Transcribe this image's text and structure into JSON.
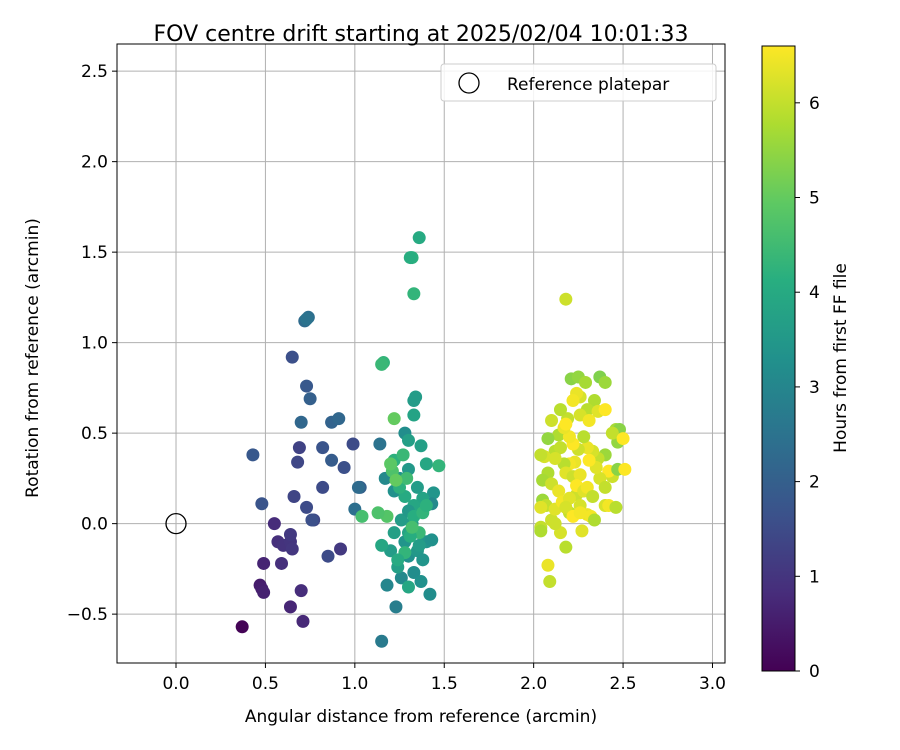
{
  "chart_data": {
    "type": "scatter",
    "title": "FOV centre drift starting at 2025/02/04 10:01:33",
    "xlabel": "Angular distance from reference (arcmin)",
    "ylabel": "Rotation from reference (arcmin)",
    "xlim": [
      -0.33,
      3.07
    ],
    "ylim": [
      -0.77,
      2.65
    ],
    "xticks": [
      0.0,
      0.5,
      1.0,
      1.5,
      2.0,
      2.5,
      3.0
    ],
    "xtick_labels": [
      "0.0",
      "0.5",
      "1.0",
      "1.5",
      "2.0",
      "2.5",
      "3.0"
    ],
    "yticks": [
      -0.5,
      0.0,
      0.5,
      1.0,
      1.5,
      2.0,
      2.5
    ],
    "ytick_labels": [
      "−0.5",
      "0.0",
      "0.5",
      "1.0",
      "1.5",
      "2.0",
      "2.5"
    ],
    "grid": true,
    "legend": {
      "position": "top-right",
      "entries": [
        {
          "label": "Reference platepar",
          "marker": "open-circle"
        }
      ]
    },
    "reference_point": {
      "x": 0.0,
      "y": 0.0
    },
    "colorbar": {
      "label": "Hours from first FF file",
      "colormap": "viridis",
      "range": [
        0,
        6.6
      ],
      "ticks": [
        0,
        1,
        2,
        3,
        4,
        5,
        6
      ],
      "tick_labels": [
        "0",
        "1",
        "2",
        "3",
        "4",
        "5",
        "6"
      ]
    },
    "points": [
      [
        0.37,
        -0.57,
        0.05
      ],
      [
        0.47,
        -0.34,
        0.5
      ],
      [
        0.48,
        -0.36,
        0.55
      ],
      [
        0.49,
        -0.38,
        0.6
      ],
      [
        0.49,
        -0.22,
        0.65
      ],
      [
        0.64,
        -0.46,
        0.7
      ],
      [
        0.71,
        -0.54,
        0.75
      ],
      [
        0.7,
        -0.37,
        0.85
      ],
      [
        0.55,
        0.0,
        0.8
      ],
      [
        0.57,
        -0.1,
        0.9
      ],
      [
        0.6,
        -0.12,
        0.95
      ],
      [
        0.59,
        -0.22,
        0.9
      ],
      [
        0.64,
        -0.1,
        1.0
      ],
      [
        0.64,
        -0.06,
        1.1
      ],
      [
        0.65,
        -0.14,
        1.05
      ],
      [
        0.92,
        -0.14,
        1.1
      ],
      [
        0.85,
        -0.18,
        1.5
      ],
      [
        0.77,
        0.02,
        1.4
      ],
      [
        0.76,
        0.02,
        1.6
      ],
      [
        0.73,
        0.09,
        1.5
      ],
      [
        0.66,
        0.15,
        1.35
      ],
      [
        0.68,
        0.34,
        1.4
      ],
      [
        0.69,
        0.42,
        1.3
      ],
      [
        0.48,
        0.11,
        1.7
      ],
      [
        0.43,
        0.38,
        1.8
      ],
      [
        0.7,
        0.56,
        2.2
      ],
      [
        0.65,
        0.92,
        1.6
      ],
      [
        0.73,
        0.76,
        1.8
      ],
      [
        0.75,
        0.69,
        2.0
      ],
      [
        0.72,
        1.12,
        2.3
      ],
      [
        0.74,
        1.14,
        2.4
      ],
      [
        0.73,
        1.13,
        2.5
      ],
      [
        0.82,
        0.2,
        1.5
      ],
      [
        0.87,
        0.35,
        1.9
      ],
      [
        0.82,
        0.42,
        1.7
      ],
      [
        0.87,
        0.56,
        2.1
      ],
      [
        0.91,
        0.58,
        2.2
      ],
      [
        0.94,
        0.31,
        1.6
      ],
      [
        0.99,
        0.44,
        1.5
      ],
      [
        1.03,
        0.2,
        2.0
      ],
      [
        1.02,
        0.2,
        2.3
      ],
      [
        1.0,
        0.08,
        2.4
      ],
      [
        1.14,
        0.44,
        2.5
      ],
      [
        1.15,
        -0.65,
        2.7
      ],
      [
        1.23,
        -0.46,
        2.8
      ],
      [
        1.18,
        -0.34,
        3.0
      ],
      [
        1.26,
        -0.3,
        3.1
      ],
      [
        1.33,
        -0.27,
        3.2
      ],
      [
        1.37,
        -0.32,
        3.3
      ],
      [
        1.42,
        -0.39,
        3.2
      ],
      [
        1.3,
        -0.18,
        3.3
      ],
      [
        1.35,
        -0.15,
        3.5
      ],
      [
        1.38,
        -0.2,
        3.4
      ],
      [
        1.2,
        -0.15,
        3.6
      ],
      [
        1.24,
        -0.24,
        3.7
      ],
      [
        1.28,
        -0.1,
        3.4
      ],
      [
        1.3,
        -0.05,
        3.8
      ],
      [
        1.32,
        0.0,
        3.5
      ],
      [
        1.26,
        0.02,
        3.6
      ],
      [
        1.22,
        -0.05,
        3.7
      ],
      [
        1.4,
        -0.1,
        3.4
      ],
      [
        1.43,
        -0.09,
        3.3
      ],
      [
        1.36,
        -0.12,
        3.6
      ],
      [
        1.15,
        -0.12,
        3.9
      ],
      [
        1.17,
        0.25,
        3.1
      ],
      [
        1.22,
        0.18,
        3.3
      ],
      [
        1.25,
        0.25,
        3.4
      ],
      [
        1.3,
        0.3,
        3.5
      ],
      [
        1.28,
        0.5,
        3.2
      ],
      [
        1.3,
        0.46,
        3.7
      ],
      [
        1.34,
        0.7,
        3.6
      ],
      [
        1.33,
        0.6,
        3.8
      ],
      [
        1.37,
        0.43,
        3.7
      ],
      [
        1.4,
        0.33,
        3.9
      ],
      [
        1.44,
        0.17,
        3.4
      ],
      [
        1.43,
        0.11,
        3.1
      ],
      [
        1.38,
        0.14,
        3.8
      ],
      [
        1.33,
        0.1,
        3.9
      ],
      [
        1.35,
        0.2,
        3.6
      ],
      [
        1.3,
        0.07,
        3.5
      ],
      [
        1.28,
        0.15,
        4.0
      ],
      [
        1.25,
        0.2,
        4.2
      ],
      [
        1.33,
        0.04,
        4.1
      ],
      [
        1.38,
        0.06,
        4.3
      ],
      [
        1.36,
        -0.05,
        4.4
      ],
      [
        1.4,
        0.1,
        4.2
      ],
      [
        1.31,
        -0.07,
        4.1
      ],
      [
        1.28,
        -0.16,
        4.3
      ],
      [
        1.24,
        -0.2,
        4.0
      ],
      [
        1.3,
        -0.35,
        3.9
      ],
      [
        1.47,
        0.32,
        4.3
      ],
      [
        1.22,
        0.35,
        4.2
      ],
      [
        1.27,
        0.38,
        4.4
      ],
      [
        1.29,
        0.25,
        4.5
      ],
      [
        1.32,
        -0.02,
        4.6
      ],
      [
        1.21,
        0.29,
        4.7
      ],
      [
        1.2,
        0.33,
        4.9
      ],
      [
        1.23,
        0.24,
        5.0
      ],
      [
        1.18,
        0.04,
        4.8
      ],
      [
        1.04,
        0.04,
        4.6
      ],
      [
        1.13,
        0.06,
        4.7
      ],
      [
        1.16,
        0.89,
        4.3
      ],
      [
        1.15,
        0.88,
        4.4
      ],
      [
        1.22,
        0.58,
        5.0
      ],
      [
        1.32,
        1.47,
        4.2
      ],
      [
        1.31,
        1.47,
        4.1
      ],
      [
        1.36,
        1.58,
        4.0
      ],
      [
        1.33,
        1.27,
        4.3
      ],
      [
        1.33,
        0.68,
        3.6
      ],
      [
        2.18,
        1.24,
        6.1
      ],
      [
        2.21,
        0.8,
        5.4
      ],
      [
        2.25,
        0.81,
        5.5
      ],
      [
        2.29,
        0.78,
        5.7
      ],
      [
        2.37,
        0.81,
        5.3
      ],
      [
        2.4,
        0.78,
        5.6
      ],
      [
        2.34,
        0.68,
        5.8
      ],
      [
        2.3,
        0.63,
        5.9
      ],
      [
        2.26,
        0.7,
        6.2
      ],
      [
        2.24,
        0.72,
        6.4
      ],
      [
        2.22,
        0.68,
        6.5
      ],
      [
        2.19,
        0.58,
        6.0
      ],
      [
        2.15,
        0.63,
        5.9
      ],
      [
        2.1,
        0.57,
        6.1
      ],
      [
        2.14,
        0.49,
        5.8
      ],
      [
        2.08,
        0.47,
        5.5
      ],
      [
        2.12,
        0.4,
        5.9
      ],
      [
        2.06,
        0.37,
        6.2
      ],
      [
        2.04,
        0.38,
        6.0
      ],
      [
        2.08,
        0.28,
        5.8
      ],
      [
        2.05,
        0.24,
        5.7
      ],
      [
        2.1,
        0.22,
        6.1
      ],
      [
        2.05,
        0.13,
        5.6
      ],
      [
        2.07,
        0.1,
        6.0
      ],
      [
        2.04,
        0.09,
        6.3
      ],
      [
        2.04,
        -0.02,
        6.0
      ],
      [
        2.04,
        -0.04,
        5.8
      ],
      [
        2.1,
        0.02,
        6.1
      ],
      [
        2.12,
        0.08,
        6.3
      ],
      [
        2.15,
        -0.05,
        6.2
      ],
      [
        2.18,
        -0.13,
        5.9
      ],
      [
        2.08,
        -0.23,
        6.4
      ],
      [
        2.09,
        -0.32,
        6.0
      ],
      [
        2.2,
        0.06,
        6.0
      ],
      [
        2.24,
        0.16,
        6.1
      ],
      [
        2.26,
        0.1,
        6.2
      ],
      [
        2.3,
        0.05,
        6.4
      ],
      [
        2.32,
        0.04,
        6.5
      ],
      [
        2.27,
        -0.04,
        6.3
      ],
      [
        2.34,
        0.02,
        5.8
      ],
      [
        2.4,
        0.1,
        6.2
      ],
      [
        2.42,
        0.1,
        6.5
      ],
      [
        2.46,
        0.09,
        5.9
      ],
      [
        2.44,
        0.26,
        6.1
      ],
      [
        2.42,
        0.29,
        6.6
      ],
      [
        2.47,
        0.3,
        5.4
      ],
      [
        2.51,
        0.3,
        6.6
      ],
      [
        2.47,
        0.45,
        5.5
      ],
      [
        2.46,
        0.52,
        5.7
      ],
      [
        2.48,
        0.52,
        5.4
      ],
      [
        2.44,
        0.5,
        6.0
      ],
      [
        2.5,
        0.47,
        6.6
      ],
      [
        2.4,
        0.38,
        5.6
      ],
      [
        2.36,
        0.36,
        6.0
      ],
      [
        2.33,
        0.4,
        6.2
      ],
      [
        2.3,
        0.42,
        6.4
      ],
      [
        2.28,
        0.48,
        5.9
      ],
      [
        2.25,
        0.41,
        6.1
      ],
      [
        2.22,
        0.44,
        6.6
      ],
      [
        2.2,
        0.48,
        6.5
      ],
      [
        2.17,
        0.53,
        6.4
      ],
      [
        2.18,
        0.55,
        6.6
      ],
      [
        2.26,
        0.6,
        6.2
      ],
      [
        2.31,
        0.57,
        6.5
      ],
      [
        2.36,
        0.62,
        6.3
      ],
      [
        2.4,
        0.63,
        6.6
      ],
      [
        2.23,
        0.34,
        6.4
      ],
      [
        2.2,
        0.33,
        6.5
      ],
      [
        2.17,
        0.33,
        5.9
      ],
      [
        2.15,
        0.42,
        6.0
      ],
      [
        2.12,
        0.36,
        6.2
      ],
      [
        2.18,
        0.28,
        6.3
      ],
      [
        2.22,
        0.26,
        6.1
      ],
      [
        2.26,
        0.27,
        6.4
      ],
      [
        2.24,
        0.21,
        6.6
      ],
      [
        2.28,
        0.18,
        6.3
      ],
      [
        2.3,
        0.2,
        6.5
      ],
      [
        2.14,
        0.18,
        6.4
      ],
      [
        2.16,
        0.12,
        6.5
      ],
      [
        2.2,
        0.14,
        6.3
      ],
      [
        2.18,
        0.09,
        6.2
      ],
      [
        2.12,
        0.0,
        6.1
      ],
      [
        2.22,
        0.04,
        6.6
      ],
      [
        2.26,
        0.06,
        6.5
      ],
      [
        2.33,
        0.15,
        6.0
      ],
      [
        2.37,
        0.25,
        6.2
      ],
      [
        2.4,
        0.2,
        6.0
      ],
      [
        2.35,
        0.31,
        6.3
      ],
      [
        2.31,
        0.35,
        6.6
      ]
    ]
  }
}
